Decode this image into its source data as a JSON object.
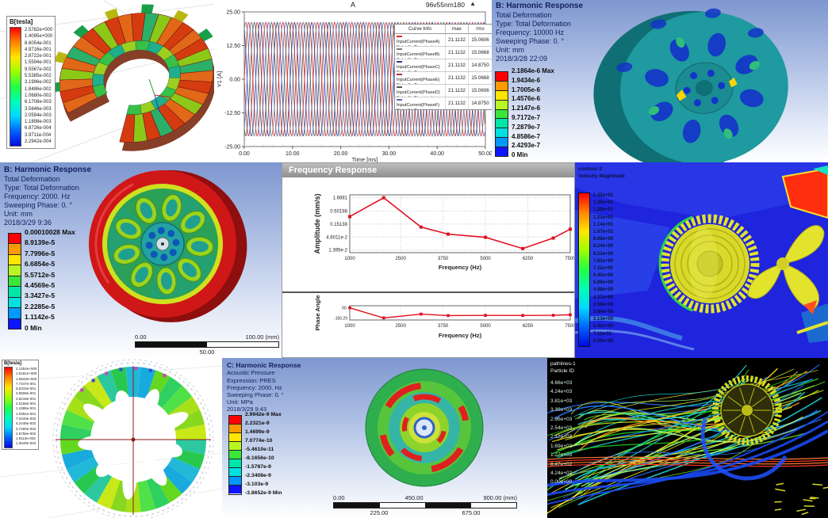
{
  "colors": {
    "ansys_bands": [
      "#ff0000",
      "#ff9900",
      "#ffe600",
      "#b9f522",
      "#39e639",
      "#00e6a8",
      "#00e0e0",
      "#0099ff",
      "#0f14ff"
    ],
    "plot_red": "#e01020"
  },
  "panels": {
    "maxwell_top": {
      "legend_title": "B[tesla]",
      "legend_values": [
        "2.5782e+000",
        "1.4095e+000",
        "8.6054e-001",
        "4.9716e-001",
        "2.8722e-001",
        "1.5594e-001",
        "9.5567e-002",
        "5.5385e-002",
        "3.1996e-002",
        "1.8486e-002",
        "1.0680e-002",
        "6.1708e-003",
        "3.5646e-003",
        "2.0594e-003",
        "1.1898e-003",
        "6.8726e-004",
        "3.9711e-004",
        "2.2942e-004"
      ]
    },
    "current_plot": {
      "title": "A",
      "annotation": "96v55nm180",
      "marker": "▲"
    },
    "harmonic_top_right": {
      "title": "B: Harmonic Response",
      "lines": [
        "Total Deformation",
        "Type: Total Deformation",
        "Frequency: 10000 Hz",
        "Sweeping Phase: 0. °",
        "Unit: mm",
        "2018/3/28 22:09"
      ],
      "legend_values": [
        "2.1864e-6 Max",
        "1.9434e-6",
        "1.7005e-6",
        "1.4576e-6",
        "1.2147e-6",
        "9.7172e-7",
        "7.2879e-7",
        "4.8586e-7",
        "2.4293e-7",
        "0 Min"
      ]
    },
    "harmonic_mid_left": {
      "title": "B: Harmonic Response",
      "lines": [
        "Total Deformation",
        "Type: Total Deformation",
        "Frequency: 2000. Hz",
        "Sweeping Phase: 0. °",
        "Unit: mm",
        "2018/3/29 9:36"
      ],
      "legend_values": [
        "0.00010028 Max",
        "8.9139e-5",
        "7.7996e-5",
        "6.6854e-5",
        "5.5712e-5",
        "4.4569e-5",
        "3.3427e-5",
        "2.2285e-5",
        "1.1142e-5",
        "0 Min"
      ],
      "scale_bar": {
        "left": "0.00",
        "right": "100.00 (mm)",
        "below_center": "50.00"
      }
    },
    "freq_response": {
      "window_title": "Frequency Response"
    },
    "cfd_velocity": {
      "title_line1": "contour-2",
      "title_line2": "Velocity Magnitude",
      "legend_values": [
        "1.42e+01",
        "1.35e+01",
        "1.28e+01",
        "1.21e+01",
        "1.14e+01",
        "1.07e+01",
        "9.96e+00",
        "9.24e+00",
        "8.53e+00",
        "7.82e+00",
        "7.11e+00",
        "6.40e+00",
        "5.69e+00",
        "4.98e+00",
        "4.27e+00",
        "3.56e+00",
        "2.84e+00",
        "2.13e+00",
        "1.42e+00",
        "7.11e-01",
        "0.00e+00"
      ]
    },
    "maxwell_bottom": {
      "legend_title": "B[tesla]",
      "legend_values": [
        "2.1254e+000",
        "1.5181e+000",
        "1.0843e+000",
        "7.7447e-001",
        "5.5315e-001",
        "3.9508e-001",
        "2.8218e-001",
        "2.0155e-001",
        "1.4395e-001",
        "1.0281e-001",
        "7.3433e-002",
        "5.2448e-002",
        "3.7460e-002",
        "2.6756e-002",
        "1.9110e-002",
        "1.3649e-002"
      ]
    },
    "acoustic": {
      "title": "C: Harmonic Response",
      "lines": [
        "Acoustic Pressure",
        "Expression: PRES",
        "Frequency: 2000. Hz",
        "Sweeping Phase: 0. °",
        "Unit: MPa",
        "2018/3/29 9:43"
      ],
      "legend_values": [
        "2.9942e-9 Max",
        "2.2321e-9",
        "1.4699e-9",
        "7.0774e-10",
        "-5.4610e-11",
        "-8.1656e-10",
        "-1.5787e-9",
        "-2.3408e-9",
        "-3.103e-9",
        "-3.8652e-9 Min"
      ],
      "scale_bar": {
        "left": "0.00",
        "mid": "450.00",
        "right": "900.00 (mm)",
        "below_left": "225.00",
        "below_right": "675.00"
      }
    },
    "particles": {
      "title_line1": "pathlines-1",
      "title_line2": "Particle ID",
      "legend_values": [
        "4.66e+03",
        "4.24e+03",
        "3.81e+03",
        "3.39e+03",
        "2.96e+03",
        "2.54e+03",
        "2.12e+03",
        "1.69e+03",
        "1.27e+03",
        "8.47e+02",
        "4.24e+02",
        "0.00e+00"
      ]
    }
  },
  "chart_data": [
    {
      "id": "input_current",
      "type": "line",
      "title": "A",
      "annotation": "96v55nm180",
      "xlabel": "Time [ms]",
      "ylabel": "Y1 [A]",
      "xlim": [
        0,
        50
      ],
      "ylim": [
        -25,
        25
      ],
      "x_ticks": [
        0,
        10,
        20,
        30,
        40,
        50
      ],
      "x_tick_labels": [
        "0.00",
        "10.00",
        "20.00",
        "30.00",
        "40.00",
        "50.00"
      ],
      "y_ticks": [
        25,
        12.5,
        0,
        -12.5,
        -25
      ],
      "y_tick_labels": [
        "25.00",
        "12.50",
        "0.00",
        "-12.50",
        "-25.00"
      ],
      "waveform": {
        "amplitude": 21.1132,
        "cycles": 14
      },
      "legend_header": [
        "Curve Info",
        "max",
        "rms"
      ],
      "series": [
        {
          "name": "InputCurrent(PhaseA)",
          "setup": "Setup1 : Transient",
          "max": "21.1132",
          "rms": "15.0606",
          "color": "#e02828",
          "phase_deg": 0
        },
        {
          "name": "InputCurrent(PhaseB)",
          "setup": "Setup1 : Transient",
          "max": "21.1132",
          "rms": "15.0668",
          "color": "#7a7a7a",
          "phase_deg": 60
        },
        {
          "name": "InputCurrent(PhaseC)",
          "setup": "Setup1 : Transient",
          "max": "21.1132",
          "rms": "14.8750",
          "color": "#2b3a9c",
          "phase_deg": 120
        },
        {
          "name": "InputCurrent(PhaseE)",
          "setup": "Setup1 : Transient",
          "max": "21.1132",
          "rms": "15.0668",
          "color": "#b03030",
          "phase_deg": 180
        },
        {
          "name": "InputCurrent(PhaseD)",
          "setup": "Setup1 : Transient",
          "max": "21.1132",
          "rms": "15.0606",
          "color": "#565656",
          "phase_deg": 240
        },
        {
          "name": "InputCurrent(PhaseF)",
          "setup": "Setup1 : Transient",
          "max": "21.1132",
          "rms": "14.8750",
          "color": "#5a6ab4",
          "phase_deg": 300
        }
      ]
    },
    {
      "id": "amplitude_response",
      "type": "line",
      "yscale": "log",
      "ylabel": "Amplitude (mm/s)",
      "xlabel": "Frequency (Hz)",
      "x_ticks": [
        1000,
        2500,
        3750,
        5000,
        6250,
        7500
      ],
      "y_ticks": [
        1.6881,
        0.50198,
        0.15138,
        0.046011,
        0.01395
      ],
      "y_tick_labels": [
        "1.6881",
        "0.50198",
        "0.15138",
        "4.6011e-2",
        "1.395e-2"
      ],
      "x": [
        1000,
        2000,
        3100,
        3900,
        5000,
        6100,
        7000,
        7500
      ],
      "y": [
        0.3,
        1.6881,
        0.115,
        0.06,
        0.045,
        0.016,
        0.042,
        0.095
      ],
      "color": "#e01020",
      "marker": "square"
    },
    {
      "id": "phase_response",
      "type": "line",
      "ylabel": "Phase Angle",
      "xlabel": "Frequency (Hz)",
      "ylim": [
        -200,
        140
      ],
      "x_ticks": [
        1000,
        2500,
        3750,
        5000,
        6250,
        7500
      ],
      "y_ticks": [
        90,
        -150.29
      ],
      "y_tick_labels": [
        "90.",
        "-150.29"
      ],
      "x": [
        1000,
        2000,
        3100,
        3900,
        5000,
        6100,
        7000,
        7500
      ],
      "y": [
        90,
        -150.29,
        -60,
        -95,
        -90,
        -92,
        -88,
        -75
      ],
      "color": "#e01020",
      "marker": "square"
    }
  ]
}
